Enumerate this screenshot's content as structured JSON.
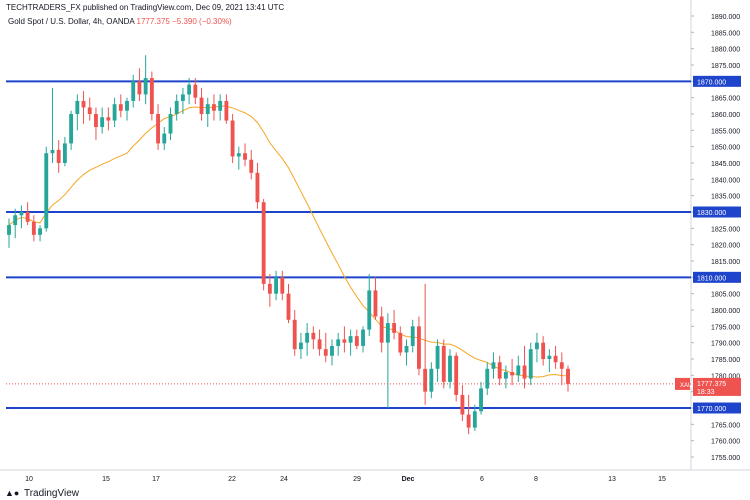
{
  "header": {
    "published": "TECHTRADERS_FX published on TradingView.com, Dec 09, 2021 13:41 UTC",
    "symbol": "Gold Spot / U.S. Dollar, 4h, OANDA",
    "price": "1777.375",
    "change": "−5.390 (−0.30%)"
  },
  "footer": {
    "brand": "TradingView",
    "logo": "tradingview-logo"
  },
  "chart_data": {
    "type": "candlestick",
    "symbol": "XAUUSD",
    "ylim": [
      1750,
      1890
    ],
    "y_ticks": [
      1755,
      1760,
      1765,
      1770,
      1775,
      1780,
      1785,
      1790,
      1795,
      1800,
      1805,
      1810,
      1815,
      1820,
      1825,
      1830,
      1835,
      1840,
      1845,
      1850,
      1855,
      1860,
      1865,
      1870,
      1875,
      1880,
      1885,
      1890
    ],
    "x_ticks": [
      "10",
      "15",
      "17",
      "22",
      "24",
      "29",
      "Dec",
      "6",
      "8",
      "13",
      "15"
    ],
    "last_price_label": "XAUUSD",
    "last_price": 1777.375,
    "countdown": "18:33",
    "horizontal_levels": [
      1870,
      1830,
      1810,
      1770
    ],
    "colors": {
      "up": "#26a69a",
      "down": "#ef5350",
      "level": "#1f44cc",
      "ma": "#f5a623"
    },
    "ohlc": [
      [
        1823,
        1828,
        1819,
        1826
      ],
      [
        1826,
        1831,
        1822,
        1829
      ],
      [
        1829,
        1832,
        1825,
        1830
      ],
      [
        1830,
        1833,
        1826,
        1827
      ],
      [
        1827,
        1829,
        1821,
        1823
      ],
      [
        1823,
        1826,
        1821,
        1825
      ],
      [
        1825,
        1850,
        1824,
        1848
      ],
      [
        1848,
        1868,
        1845,
        1849
      ],
      [
        1849,
        1852,
        1842,
        1845
      ],
      [
        1845,
        1853,
        1844,
        1851
      ],
      [
        1851,
        1861,
        1849,
        1860
      ],
      [
        1860,
        1866,
        1855,
        1864
      ],
      [
        1864,
        1867,
        1857,
        1862
      ],
      [
        1862,
        1865,
        1858,
        1860
      ],
      [
        1860,
        1862,
        1852,
        1856
      ],
      [
        1856,
        1862,
        1854,
        1859
      ],
      [
        1859,
        1862,
        1855,
        1858
      ],
      [
        1858,
        1865,
        1856,
        1863
      ],
      [
        1863,
        1866,
        1859,
        1861
      ],
      [
        1861,
        1865,
        1858,
        1864
      ],
      [
        1864,
        1872,
        1862,
        1870
      ],
      [
        1870,
        1874,
        1864,
        1866
      ],
      [
        1866,
        1878,
        1863,
        1871
      ],
      [
        1871,
        1873,
        1858,
        1860
      ],
      [
        1860,
        1863,
        1849,
        1851
      ],
      [
        1851,
        1856,
        1849,
        1854
      ],
      [
        1854,
        1862,
        1852,
        1860
      ],
      [
        1860,
        1866,
        1858,
        1864
      ],
      [
        1864,
        1868,
        1860,
        1866
      ],
      [
        1866,
        1871,
        1863,
        1869
      ],
      [
        1869,
        1871,
        1863,
        1865
      ],
      [
        1865,
        1868,
        1858,
        1860
      ],
      [
        1860,
        1865,
        1856,
        1863
      ],
      [
        1863,
        1866,
        1858,
        1861
      ],
      [
        1861,
        1866,
        1858,
        1864
      ],
      [
        1864,
        1866,
        1857,
        1858
      ],
      [
        1858,
        1860,
        1845,
        1847
      ],
      [
        1847,
        1850,
        1843,
        1848
      ],
      [
        1848,
        1851,
        1844,
        1846
      ],
      [
        1846,
        1849,
        1840,
        1842
      ],
      [
        1842,
        1845,
        1831,
        1833
      ],
      [
        1833,
        1834,
        1806,
        1808
      ],
      [
        1808,
        1811,
        1801,
        1805
      ],
      [
        1805,
        1812,
        1803,
        1810
      ],
      [
        1810,
        1812,
        1803,
        1805
      ],
      [
        1805,
        1808,
        1796,
        1797
      ],
      [
        1797,
        1800,
        1786,
        1788
      ],
      [
        1788,
        1793,
        1785,
        1790
      ],
      [
        1790,
        1796,
        1786,
        1793
      ],
      [
        1793,
        1795,
        1788,
        1791
      ],
      [
        1791,
        1794,
        1786,
        1788
      ],
      [
        1788,
        1793,
        1784,
        1786
      ],
      [
        1786,
        1791,
        1783,
        1789
      ],
      [
        1789,
        1793,
        1786,
        1791
      ],
      [
        1791,
        1795,
        1787,
        1790
      ],
      [
        1790,
        1794,
        1786,
        1792
      ],
      [
        1792,
        1794,
        1788,
        1789
      ],
      [
        1789,
        1795,
        1787,
        1794
      ],
      [
        1794,
        1811,
        1792,
        1806
      ],
      [
        1806,
        1810,
        1797,
        1798
      ],
      [
        1798,
        1801,
        1787,
        1790
      ],
      [
        1790,
        1799,
        1770,
        1796
      ],
      [
        1796,
        1800,
        1791,
        1793
      ],
      [
        1793,
        1795,
        1786,
        1787
      ],
      [
        1787,
        1791,
        1783,
        1789
      ],
      [
        1789,
        1797,
        1787,
        1795
      ],
      [
        1795,
        1798,
        1780,
        1782
      ],
      [
        1782,
        1808,
        1771,
        1775
      ],
      [
        1775,
        1784,
        1773,
        1782
      ],
      [
        1782,
        1791,
        1778,
        1789
      ],
      [
        1789,
        1791,
        1776,
        1778
      ],
      [
        1778,
        1788,
        1776,
        1786
      ],
      [
        1786,
        1787,
        1772,
        1774
      ],
      [
        1774,
        1777,
        1766,
        1768
      ],
      [
        1768,
        1774,
        1762,
        1764
      ],
      [
        1764,
        1771,
        1763,
        1769
      ],
      [
        1769,
        1778,
        1768,
        1776
      ],
      [
        1776,
        1784,
        1774,
        1782
      ],
      [
        1782,
        1787,
        1779,
        1784
      ],
      [
        1784,
        1786,
        1777,
        1779
      ],
      [
        1779,
        1783,
        1776,
        1781
      ],
      [
        1781,
        1785,
        1777,
        1780
      ],
      [
        1780,
        1786,
        1778,
        1783
      ],
      [
        1783,
        1789,
        1776,
        1779
      ],
      [
        1779,
        1790,
        1777,
        1788
      ],
      [
        1788,
        1793,
        1784,
        1790
      ],
      [
        1790,
        1792,
        1783,
        1785
      ],
      [
        1785,
        1788,
        1781,
        1786
      ],
      [
        1786,
        1789,
        1782,
        1784
      ],
      [
        1784,
        1787,
        1777,
        1782
      ],
      [
        1782,
        1783,
        1775,
        1777.375
      ]
    ]
  }
}
